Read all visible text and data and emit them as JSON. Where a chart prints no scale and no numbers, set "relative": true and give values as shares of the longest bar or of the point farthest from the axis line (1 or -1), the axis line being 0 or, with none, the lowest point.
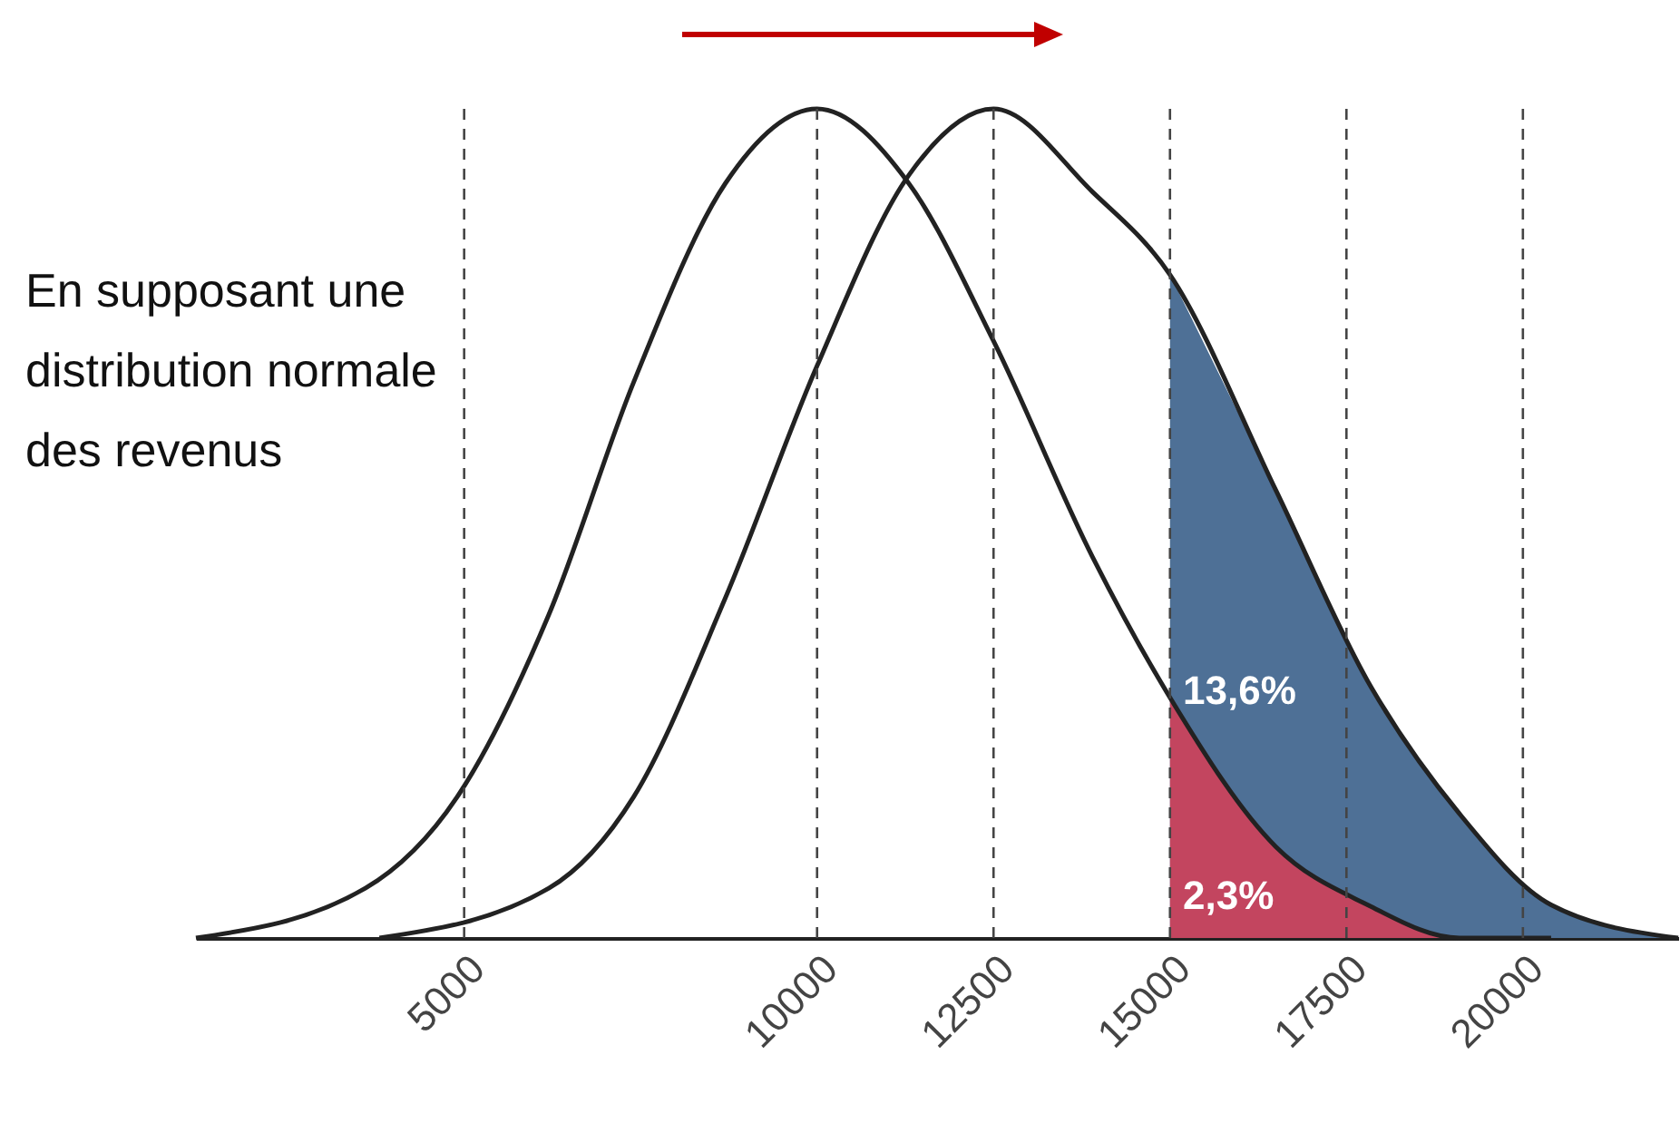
{
  "chart_data": {
    "type": "line",
    "relative": true,
    "xlim": [
      1200,
      22200
    ],
    "xticks": [
      5000,
      10000,
      12500,
      15000,
      17500,
      20000
    ],
    "series": [
      {
        "type": "area",
        "color": "#4e7096",
        "x": [
          15000,
          16500,
          17800,
          19100,
          20400,
          22200
        ],
        "values": [
          0.8,
          0.54,
          0.31,
          0.15,
          0.04,
          0
        ]
      },
      {
        "type": "area",
        "color": "#c3455f",
        "x": [
          15000,
          16500,
          17800,
          19100,
          20400
        ],
        "values": [
          0.29,
          0.11,
          0.04,
          0,
          0
        ]
      },
      {
        "type": "line",
        "color": "#222222",
        "x": [
          1200,
          3600,
          4900,
          6200,
          7400,
          8700,
          10000,
          11300,
          12500,
          13900,
          15000,
          16500,
          17800,
          19100,
          20400
        ],
        "values": [
          0,
          0.06,
          0.17,
          0.39,
          0.67,
          0.91,
          1,
          0.91,
          0.72,
          0.46,
          0.29,
          0.11,
          0.04,
          0,
          0
        ]
      },
      {
        "type": "line",
        "color": "#222222",
        "x": [
          3800,
          6200,
          7400,
          8700,
          10000,
          11300,
          12500,
          13900,
          15000,
          16500,
          17800,
          19100,
          20400,
          22200
        ],
        "values": [
          0,
          0.06,
          0.17,
          0.41,
          0.69,
          0.92,
          1,
          0.9,
          0.8,
          0.54,
          0.31,
          0.15,
          0.04,
          0
        ]
      }
    ],
    "ref_lines": [
      {
        "axis": "x",
        "value": 5000,
        "line_style": "dashed"
      },
      {
        "axis": "x",
        "value": 10000,
        "line_style": "dashed"
      },
      {
        "axis": "x",
        "value": 12500,
        "line_style": "dashed"
      },
      {
        "axis": "x",
        "value": 15000,
        "line_style": "dashed"
      },
      {
        "axis": "x",
        "value": 17500,
        "line_style": "dashed"
      },
      {
        "axis": "x",
        "value": 20000,
        "line_style": "dashed"
      }
    ],
    "annotations": [
      "En supposant une distribution normale des revenus",
      "13,6%",
      "2,3%"
    ]
  }
}
